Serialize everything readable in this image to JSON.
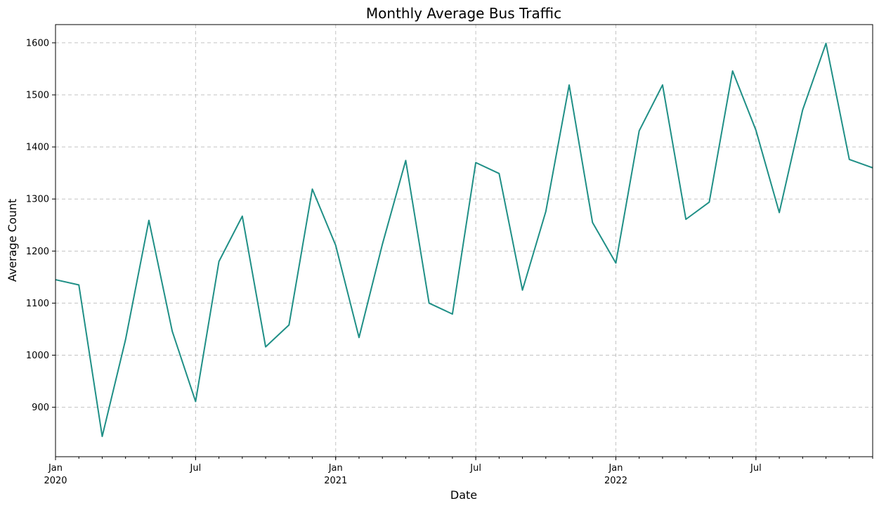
{
  "chart_data": {
    "type": "line",
    "title": "Monthly Average Bus Traffic",
    "xlabel": "Date",
    "ylabel": "Average Count",
    "x": [
      "2020-01",
      "2020-02",
      "2020-03",
      "2020-04",
      "2020-05",
      "2020-06",
      "2020-07",
      "2020-08",
      "2020-09",
      "2020-10",
      "2020-11",
      "2020-12",
      "2021-01",
      "2021-02",
      "2021-03",
      "2021-04",
      "2021-05",
      "2021-06",
      "2021-07",
      "2021-08",
      "2021-09",
      "2021-10",
      "2021-11",
      "2021-12",
      "2022-01",
      "2022-02",
      "2022-03",
      "2022-04",
      "2022-05",
      "2022-06",
      "2022-07",
      "2022-08",
      "2022-09",
      "2022-10",
      "2022-11",
      "2022-12"
    ],
    "series": [
      {
        "values": [
          1145,
          1135,
          844,
          1030,
          1259,
          1046,
          911,
          1180,
          1267,
          1016,
          1058,
          1319,
          1211,
          1034,
          1213,
          1374,
          1100,
          1079,
          1370,
          1349,
          1125,
          1276,
          1519,
          1255,
          1177,
          1431,
          1519,
          1261,
          1294,
          1546,
          1432,
          1274,
          1471,
          1599,
          1376,
          1360
        ],
        "color": "#1f8f86"
      }
    ],
    "yticks": [
      900,
      1000,
      1100,
      1200,
      1300,
      1400,
      1500,
      1600
    ],
    "ylim": [
      805,
      1635
    ],
    "xlim": [
      "2020-01",
      "2022-12"
    ],
    "xticks_major": [
      {
        "month": "2020-01",
        "label": "Jan",
        "sublabel": "2020"
      },
      {
        "month": "2020-07",
        "label": "Jul",
        "sublabel": ""
      },
      {
        "month": "2021-01",
        "label": "Jan",
        "sublabel": "2021"
      },
      {
        "month": "2021-07",
        "label": "Jul",
        "sublabel": ""
      },
      {
        "month": "2022-01",
        "label": "Jan",
        "sublabel": "2022"
      },
      {
        "month": "2022-07",
        "label": "Jul",
        "sublabel": ""
      }
    ],
    "grid": true,
    "legend": false
  }
}
